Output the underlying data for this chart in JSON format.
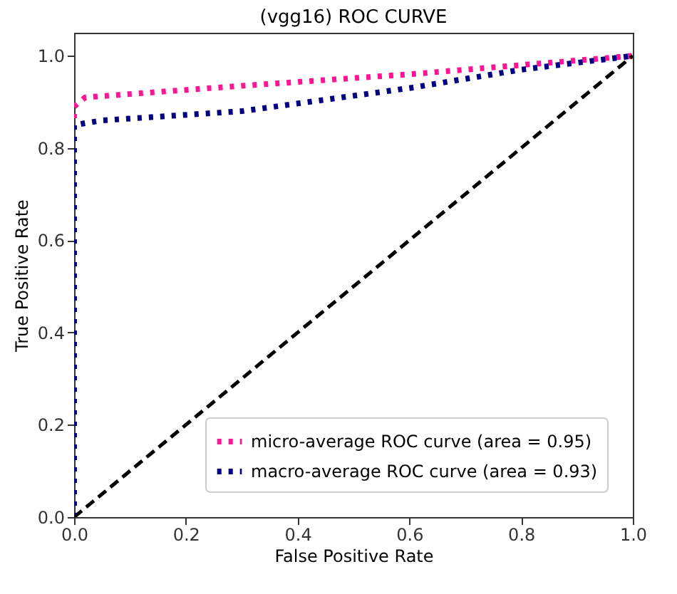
{
  "chart_data": {
    "type": "line",
    "title": "(vgg16) ROC CURVE",
    "xlabel": "False Positive Rate",
    "ylabel": "True Positive Rate",
    "xlim": [
      0,
      1
    ],
    "ylim": [
      0,
      1.05
    ],
    "xticks": [
      {
        "value": 0,
        "label": "0.0"
      },
      0.2,
      0.4,
      0.6,
      0.8,
      {
        "value": 1,
        "label": "1.0"
      }
    ],
    "yticks": [
      {
        "value": 0,
        "label": "0.0"
      },
      0.2,
      0.4,
      0.6,
      0.8,
      {
        "value": 1,
        "label": "1.0"
      }
    ],
    "grid": false,
    "legend": "bottom right",
    "series": [
      {
        "name": "micro-average ROC curve (area = 0.95)",
        "color": "#ff1493",
        "line_style": "dotted",
        "x": [
          0,
          0,
          0.02,
          0.3,
          0.6,
          0.8,
          1
        ],
        "values": [
          0,
          0.89,
          0.91,
          0.935,
          0.96,
          0.98,
          1
        ]
      },
      {
        "name": "macro-average ROC curve (area = 0.93)",
        "color": "#000080",
        "line_style": "dotted",
        "x": [
          0,
          0,
          0,
          0.05,
          0.3,
          0.6,
          0.8,
          1
        ],
        "values": [
          0,
          0.77,
          0.85,
          0.86,
          0.88,
          0.93,
          0.97,
          1
        ]
      },
      {
        "color": "#000000",
        "line_style": "dashed",
        "x": [
          0,
          1
        ],
        "values": [
          0,
          1
        ]
      }
    ]
  }
}
